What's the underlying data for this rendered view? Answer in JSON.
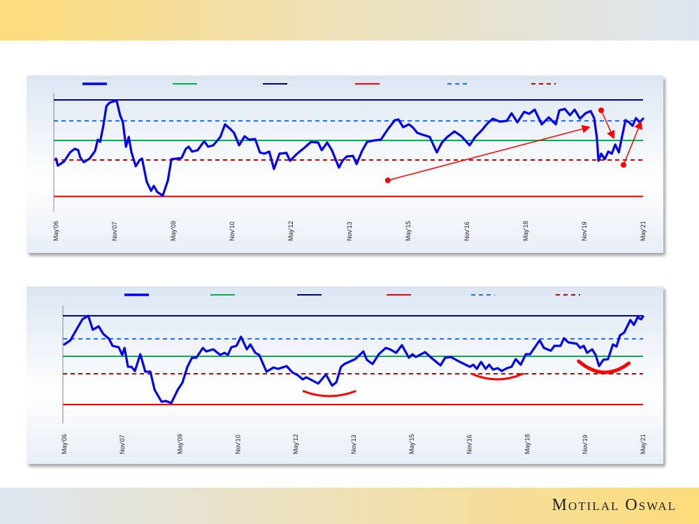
{
  "brand": "Motilal Oswal",
  "colors": {
    "series": "#0000ee",
    "average": "#00b050",
    "max": "#00008b",
    "min": "#ff0000",
    "plus_1sd": "#1e6fff",
    "minus_1sd": "#c00000",
    "annotation": "#ff0000"
  },
  "chart_data": [
    {
      "type": "line",
      "title": "",
      "legend": {
        "placement": "top",
        "entries": [
          "",
          "",
          "",
          "",
          "",
          ""
        ],
        "styles": [
          "series-solid-thick",
          "average-solid",
          "max-solid",
          "min-solid",
          "plus-1sd-dashed",
          "minus-1sd-dashed"
        ]
      },
      "x_ticks": [
        "May'06",
        "Nov'07",
        "May'09",
        "Nov'10",
        "May'12",
        "Nov'13",
        "May'15",
        "Nov'16",
        "May'18",
        "Nov'19",
        "May'21"
      ],
      "xlim": [
        2006.37,
        2021.37
      ],
      "y_tick_labels": "none",
      "reference_lines": {
        "max": 2.07,
        "plus_1sd": 1.0,
        "average": 0,
        "minus_1sd": -1.0,
        "min": -2.86
      },
      "series": [
        {
          "x": [
            2006.37,
            2006.42,
            2006.58,
            2006.73,
            2006.85,
            2006.94,
            2006.99,
            2007.08,
            2007.23,
            2007.37,
            2007.44,
            2007.5,
            2007.58,
            2007.66,
            2007.74,
            2007.92,
            2008.01,
            2008.08,
            2008.16,
            2008.23,
            2008.3,
            2008.41,
            2008.51,
            2008.57,
            2008.69,
            2008.8,
            2008.87,
            2008.96,
            2009.1,
            2009.23,
            2009.32,
            2009.46,
            2009.58,
            2009.69,
            2009.76,
            2009.85,
            2009.99,
            2010.16,
            2010.26,
            2010.39,
            2010.57,
            2010.69,
            2010.83,
            2010.92,
            2011.05,
            2011.19,
            2011.3,
            2011.46,
            2011.58,
            2011.69,
            2011.82,
            2011.94,
            2012.08,
            2012.26,
            2012.35,
            2012.53,
            2012.71,
            2012.89,
            2013.07,
            2013.16,
            2013.3,
            2013.42,
            2013.6,
            2013.69,
            2013.8,
            2013.96,
            2014.05,
            2014.19,
            2014.32,
            2014.5,
            2014.67,
            2014.85,
            2015.03,
            2015.12,
            2015.24,
            2015.39,
            2015.48,
            2015.6,
            2015.74,
            2015.92,
            2016.1,
            2016.23,
            2016.37,
            2016.55,
            2016.73,
            2016.94,
            2017.08,
            2017.26,
            2017.39,
            2017.53,
            2017.71,
            2017.89,
            2018.01,
            2018.16,
            2018.33,
            2018.46,
            2018.6,
            2018.78,
            2018.96,
            2019.14,
            2019.23,
            2019.37,
            2019.5,
            2019.62,
            2019.76,
            2019.9,
            2020.03,
            2020.12,
            2020.19,
            2020.23,
            2020.3,
            2020.39,
            2020.48,
            2020.57,
            2020.66,
            2020.75,
            2020.83,
            2020.92,
            2021.01,
            2021.1,
            2021.19,
            2021.28,
            2021.37
          ],
          "y": [
            -0.93,
            -1.29,
            -1.07,
            -0.61,
            -0.43,
            -0.5,
            -0.86,
            -1.11,
            -0.93,
            -0.54,
            0.04,
            -0.07,
            0.75,
            1.75,
            1.93,
            2.04,
            1.29,
            0.93,
            -0.32,
            0.18,
            -0.61,
            -1.32,
            -1.0,
            -0.93,
            -2.11,
            -2.57,
            -2.32,
            -2.64,
            -2.82,
            -2.04,
            -0.96,
            -0.93,
            -0.89,
            -0.43,
            -0.32,
            -0.57,
            -0.5,
            -0.04,
            -0.32,
            -0.25,
            0.18,
            0.82,
            0.57,
            0.39,
            -0.25,
            0.21,
            0.04,
            0.07,
            -0.61,
            -0.68,
            -0.57,
            -1.46,
            -0.68,
            -0.64,
            -1.04,
            -0.68,
            -0.39,
            -0.07,
            -0.11,
            -0.5,
            -0.11,
            -0.5,
            -1.39,
            -1.04,
            -0.82,
            -0.79,
            -1.21,
            -0.54,
            -0.07,
            0,
            0.04,
            0.57,
            1.04,
            1.07,
            0.68,
            0.82,
            0.68,
            0.39,
            0.29,
            0.18,
            -0.61,
            -0.11,
            0.18,
            0.46,
            0.21,
            -0.25,
            0.18,
            0.54,
            0.86,
            1.11,
            0.96,
            1.0,
            1.39,
            0.93,
            1.46,
            1.36,
            1.57,
            0.82,
            1.18,
            0.82,
            1.54,
            1.61,
            1.29,
            1.57,
            1.11,
            1.39,
            1.5,
            1.14,
            0.14,
            -1.04,
            -0.68,
            -0.96,
            -0.57,
            -0.68,
            -0.21,
            -0.61,
            0.18,
            1.04,
            0.93,
            0.75,
            1.14,
            0.93,
            1.11
          ]
        }
      ],
      "annotations": [
        {
          "type": "arrow",
          "from": [
            2014.85,
            -2.04
          ],
          "to": [
            2020.0,
            0.68
          ]
        },
        {
          "type": "arrow",
          "from": [
            2020.3,
            1.54
          ],
          "to": [
            2020.62,
            0.11
          ]
        },
        {
          "type": "arrow",
          "from": [
            2020.87,
            -1.25
          ],
          "to": [
            2021.32,
            0.96
          ]
        }
      ]
    },
    {
      "type": "line",
      "title": "",
      "legend": {
        "placement": "top",
        "entries": [
          "",
          "",
          "",
          "",
          "",
          ""
        ],
        "styles": [
          "series-solid-thick",
          "average-solid",
          "max-solid",
          "min-solid",
          "plus-1sd-dashed",
          "minus-1sd-dashed"
        ]
      },
      "x_ticks": [
        "May'06",
        "Nov'07",
        "May'09",
        "Nov'10",
        "May'12",
        "Nov'13",
        "May'15",
        "Nov'16",
        "May'18",
        "Nov'19",
        "May'21"
      ],
      "xlim": [
        2006.37,
        2021.37
      ],
      "y_tick_labels": "none",
      "reference_lines": {
        "max": 2.32,
        "plus_1sd": 1.0,
        "average": 0,
        "minus_1sd": -1.0,
        "min": -2.76
      },
      "series": [
        {
          "x": [
            2006.37,
            2006.53,
            2006.62,
            2006.84,
            2006.99,
            2007.11,
            2007.26,
            2007.38,
            2007.53,
            2007.62,
            2007.78,
            2007.87,
            2007.93,
            2008.02,
            2008.11,
            2008.2,
            2008.34,
            2008.47,
            2008.6,
            2008.71,
            2008.89,
            2009.01,
            2009.14,
            2009.32,
            2009.43,
            2009.56,
            2009.68,
            2009.79,
            2009.96,
            2010.05,
            2010.23,
            2010.41,
            2010.52,
            2010.61,
            2010.7,
            2010.83,
            2010.95,
            2011.1,
            2011.19,
            2011.32,
            2011.42,
            2011.61,
            2011.79,
            2011.91,
            2012.13,
            2012.28,
            2012.42,
            2012.55,
            2012.64,
            2012.78,
            2012.95,
            2013.15,
            2013.31,
            2013.42,
            2013.54,
            2013.63,
            2013.91,
            2014.12,
            2014.21,
            2014.36,
            2014.52,
            2014.7,
            2014.81,
            2014.97,
            2015.12,
            2015.3,
            2015.39,
            2015.48,
            2015.72,
            2015.9,
            2016.12,
            2016.24,
            2016.39,
            2016.62,
            2016.88,
            2016.97,
            2017.06,
            2017.17,
            2017.29,
            2017.38,
            2017.48,
            2017.6,
            2017.71,
            2017.84,
            2017.96,
            2018.07,
            2018.2,
            2018.33,
            2018.44,
            2018.69,
            2018.8,
            2018.98,
            2019.07,
            2019.23,
            2019.32,
            2019.43,
            2019.65,
            2019.74,
            2019.83,
            2019.92,
            2020.05,
            2020.14,
            2020.23,
            2020.34,
            2020.46,
            2020.59,
            2020.68,
            2020.77,
            2020.88,
            2021.04,
            2021.13,
            2021.23,
            2021.32,
            2021.37
          ],
          "y": [
            0.68,
            0.92,
            1.28,
            2.12,
            2.32,
            1.52,
            1.72,
            1.28,
            1.0,
            0.6,
            0.52,
            0.08,
            0.48,
            -0.6,
            -0.6,
            -0.84,
            0.12,
            -0.88,
            -0.88,
            -1.92,
            -2.6,
            -2.56,
            -2.68,
            -1.88,
            -1.52,
            -0.6,
            -0.08,
            -0.08,
            0.48,
            0.28,
            0.4,
            0.08,
            0.2,
            0.08,
            0.52,
            0.6,
            1.12,
            0.4,
            0.68,
            0.2,
            0.08,
            -0.88,
            -0.64,
            -0.72,
            -0.56,
            -0.92,
            -1.08,
            -1.32,
            -1.2,
            -1.36,
            -1.56,
            -1.04,
            -1.68,
            -1.48,
            -0.6,
            -0.44,
            -0.16,
            0.28,
            -0.2,
            -0.44,
            0.12,
            0.48,
            0.4,
            0.2,
            0.64,
            -0.08,
            0.12,
            -0.04,
            0.24,
            -0.12,
            -0.52,
            -0.08,
            -0.04,
            -0.32,
            -0.6,
            -0.48,
            -0.72,
            -0.32,
            -0.72,
            -0.48,
            -0.76,
            -0.68,
            -0.84,
            -0.68,
            -0.6,
            -0.16,
            -0.48,
            0.12,
            0.12,
            0.92,
            0.48,
            0.32,
            0.6,
            0.6,
            1.04,
            0.8,
            0.72,
            0.48,
            0.6,
            0.2,
            0.4,
            0.08,
            -0.56,
            -0.2,
            -0.16,
            0.68,
            0.56,
            1.2,
            1.36,
            2.08,
            1.8,
            2.24,
            2.12,
            2.28
          ]
        }
      ],
      "annotations": [
        {
          "type": "arc",
          "from": [
            2012.57,
            -2.0
          ],
          "to": [
            2013.91,
            -2.0
          ],
          "bottom": -2.28
        },
        {
          "type": "arc",
          "from": [
            2016.93,
            -1.0
          ],
          "to": [
            2018.25,
            -1.0
          ],
          "bottom": -1.32
        },
        {
          "type": "arc",
          "from": [
            2019.7,
            -0.28
          ],
          "to": [
            2021.0,
            -0.4
          ],
          "bottom": -0.92
        }
      ]
    }
  ]
}
